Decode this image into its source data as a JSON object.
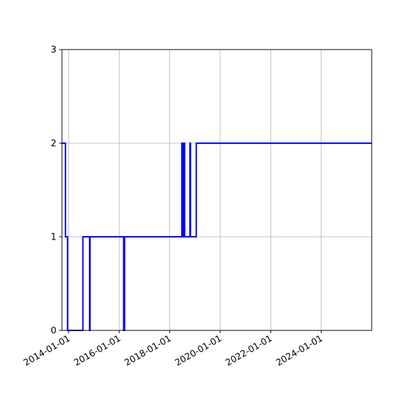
{
  "chart_data": {
    "type": "line",
    "title": "",
    "xlabel": "",
    "ylabel": "",
    "grid": true,
    "xlim": [
      "2013-09-25",
      "2025-12-31"
    ],
    "ylim": [
      0,
      3
    ],
    "x_ticks": [
      "2014-01-01",
      "2016-01-01",
      "2018-01-01",
      "2020-01-01",
      "2022-01-01",
      "2024-01-01"
    ],
    "y_ticks": [
      "0",
      "1",
      "2",
      "3"
    ],
    "series": [
      {
        "color": "#0000ff",
        "step": "post",
        "points": [
          [
            "2013-09-25",
            2
          ],
          [
            "2013-11-15",
            1
          ],
          [
            "2013-12-15",
            0
          ],
          [
            "2014-07-25",
            1
          ],
          [
            "2014-10-30",
            0
          ],
          [
            "2014-11-05",
            1
          ],
          [
            "2016-03-05",
            0
          ],
          [
            "2016-03-20",
            1
          ],
          [
            "2018-06-25",
            2
          ],
          [
            "2018-07-10",
            1
          ],
          [
            "2018-07-20",
            2
          ],
          [
            "2018-08-05",
            1
          ],
          [
            "2018-10-20",
            2
          ],
          [
            "2018-10-28",
            1
          ],
          [
            "2019-01-20",
            2
          ],
          [
            "2025-12-31",
            2
          ]
        ]
      }
    ]
  }
}
